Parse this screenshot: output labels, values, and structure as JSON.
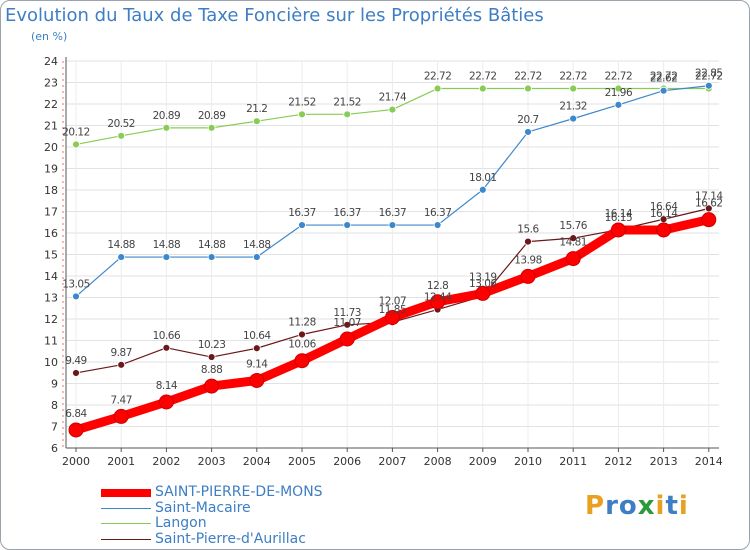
{
  "title": "Evolution du Taux de Taxe Foncière sur les Propriétés Bâties",
  "unit": "(en %)",
  "logo": {
    "letters": [
      "P",
      "r",
      "o",
      "x",
      "i",
      "t",
      "i"
    ],
    "colors": [
      "#e8a020",
      "#3d7ec4",
      "#3d7ec4",
      "#2a9a3a",
      "#e8a020",
      "#3d7ec4",
      "#e8a020"
    ]
  },
  "chart_data": {
    "type": "line",
    "title": "Evolution du Taux de Taxe Foncière sur les Propriétés Bâties",
    "ylabel": "(en %)",
    "xlabel": "",
    "ylim": [
      6,
      24
    ],
    "yticks": [
      6,
      7,
      8,
      9,
      10,
      11,
      12,
      13,
      14,
      15,
      16,
      17,
      18,
      19,
      20,
      21,
      22,
      23,
      24
    ],
    "categories": [
      "2000",
      "2001",
      "2002",
      "2003",
      "2004",
      "2005",
      "2006",
      "2007",
      "2008",
      "2009",
      "2010",
      "2011",
      "2012",
      "2013",
      "2014"
    ],
    "series": [
      {
        "name": "SAINT-PIERRE-DE-MONS",
        "color": "#ff0000",
        "values": [
          6.84,
          7.47,
          8.14,
          8.88,
          9.14,
          10.06,
          11.07,
          12.07,
          12.8,
          13.19,
          13.98,
          14.81,
          16.14,
          16.14,
          16.62
        ]
      },
      {
        "name": "Saint-Macaire",
        "color": "#3d88cc",
        "values": [
          13.05,
          14.88,
          14.88,
          14.88,
          14.88,
          16.37,
          16.37,
          16.37,
          16.37,
          18.01,
          20.7,
          21.32,
          21.96,
          22.62,
          22.85
        ]
      },
      {
        "name": "Langon",
        "color": "#88cc55",
        "values": [
          20.12,
          20.52,
          20.89,
          20.89,
          21.2,
          21.52,
          21.52,
          21.74,
          22.72,
          22.72,
          22.72,
          22.72,
          22.72,
          22.72,
          22.72
        ]
      },
      {
        "name": "Saint-Pierre-d'Aurillac",
        "color": "#6b1818",
        "values": [
          9.49,
          9.87,
          10.66,
          10.23,
          10.64,
          11.28,
          11.73,
          11.85,
          12.44,
          13.06,
          15.6,
          15.76,
          16.15,
          16.64,
          17.14
        ]
      }
    ]
  }
}
